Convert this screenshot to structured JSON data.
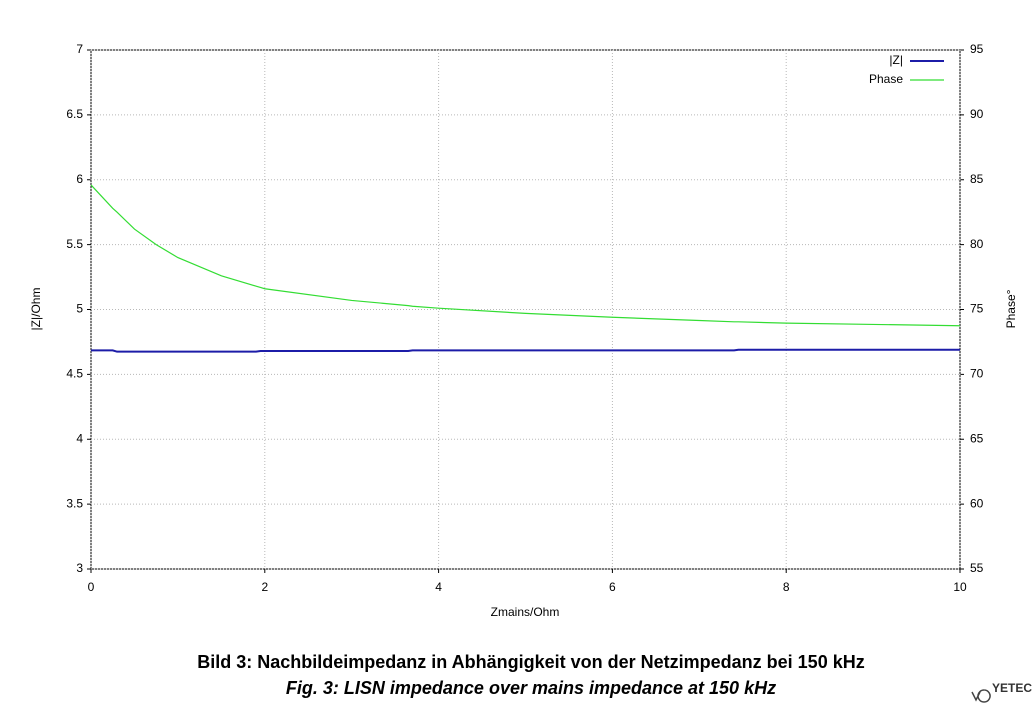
{
  "chart_data": {
    "type": "line",
    "x_label": "Zmains/Ohm",
    "y_label": "|Z|/Ohm",
    "y2_label": "Phase°",
    "caption": "Bild 3: Nachbildeimpedanz in Abhängigkeit von der Netzimpedanz bei 150 kHz",
    "caption_en": "Fig. 3: LISN impedance over mains impedance at 150 kHz",
    "logo": "YETEC",
    "xlim": [
      0,
      10
    ],
    "xticks": [
      0,
      2,
      4,
      6,
      8,
      10
    ],
    "ylim": [
      3,
      7
    ],
    "yticks": [
      3,
      3.5,
      4,
      4.5,
      5,
      5.5,
      6,
      6.5,
      7
    ],
    "y2lim": [
      55,
      95
    ],
    "y2ticks": [
      55,
      60,
      65,
      70,
      75,
      80,
      85,
      90,
      95
    ],
    "grid": true,
    "legend": "top-right",
    "x": [
      0,
      0.25,
      0.3,
      0.5,
      0.75,
      1,
      1.5,
      1.9,
      1.95,
      2,
      3,
      3.65,
      3.7,
      4,
      5,
      6,
      7,
      7.4,
      7.45,
      8,
      9,
      10
    ],
    "series": [
      {
        "name": "|Z|",
        "color": "#1c1ca8",
        "values": [
          4.685,
          4.685,
          4.675,
          4.675,
          4.675,
          4.675,
          4.675,
          4.675,
          4.68,
          4.68,
          4.68,
          4.68,
          4.685,
          4.685,
          4.685,
          4.685,
          4.685,
          4.685,
          4.69,
          4.69,
          4.69,
          4.69
        ]
      },
      {
        "name": "Phase",
        "color": "#33dd33",
        "axis": "y2",
        "values": [
          84.6,
          82.8,
          82.5,
          81.2,
          80.0,
          79.0,
          77.6,
          76.8,
          76.7,
          76.6,
          75.7,
          75.3,
          75.25,
          75.1,
          74.7,
          74.4,
          74.15,
          74.05,
          74.05,
          73.95,
          73.85,
          73.75
        ]
      }
    ]
  }
}
